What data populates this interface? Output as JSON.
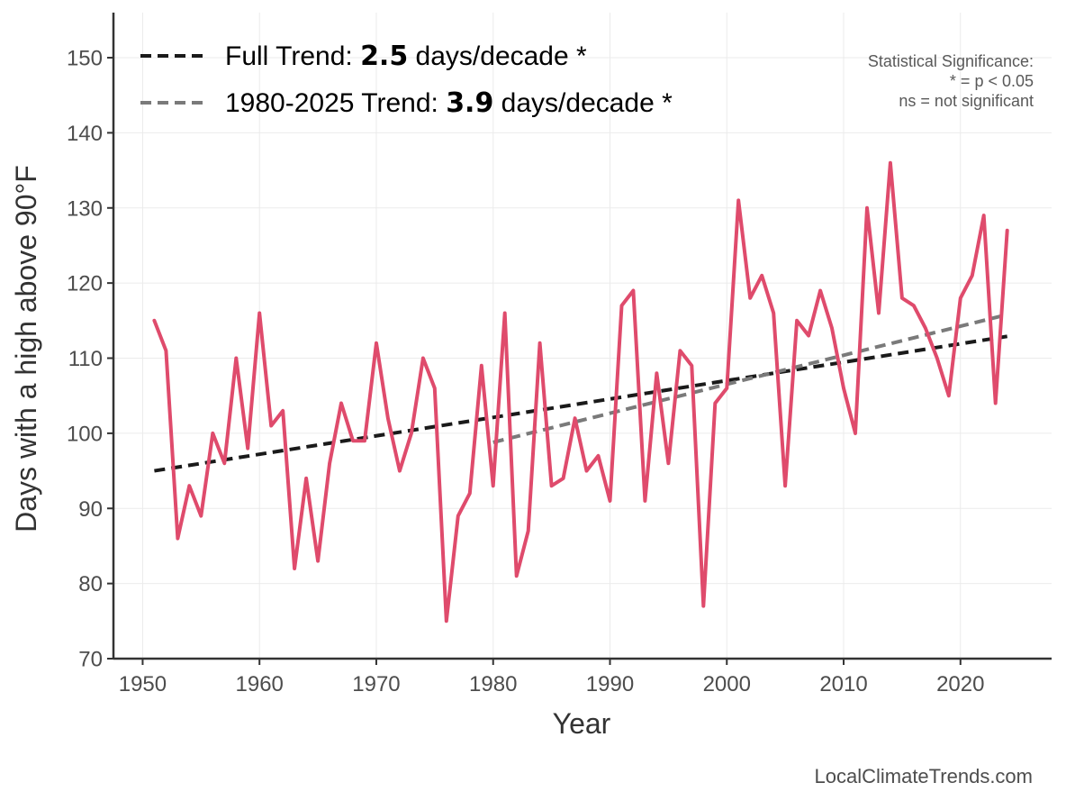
{
  "chart_data": {
    "type": "line",
    "xlabel": "Year",
    "ylabel": "Days with a high above 90°F",
    "xlim": [
      1947.5,
      2027.8
    ],
    "ylim": [
      70,
      156
    ],
    "xticks": [
      1950,
      1960,
      1970,
      1980,
      1990,
      2000,
      2010,
      2020
    ],
    "yticks": [
      70,
      80,
      90,
      100,
      110,
      120,
      130,
      140,
      150
    ],
    "grid": true,
    "legend_position": "top-left",
    "series": [
      {
        "name": "Days above 90°F",
        "color": "#df4b6c",
        "x": [
          1951,
          1952,
          1953,
          1954,
          1955,
          1956,
          1957,
          1958,
          1959,
          1960,
          1961,
          1962,
          1963,
          1964,
          1965,
          1966,
          1967,
          1968,
          1969,
          1970,
          1971,
          1972,
          1973,
          1974,
          1975,
          1976,
          1977,
          1978,
          1979,
          1980,
          1981,
          1982,
          1983,
          1984,
          1985,
          1986,
          1987,
          1988,
          1989,
          1990,
          1991,
          1992,
          1993,
          1994,
          1995,
          1996,
          1997,
          1998,
          1999,
          2000,
          2001,
          2002,
          2003,
          2004,
          2005,
          2006,
          2007,
          2008,
          2009,
          2010,
          2011,
          2012,
          2013,
          2014,
          2015,
          2016,
          2017,
          2018,
          2019,
          2020,
          2021,
          2022,
          2023,
          2024
        ],
        "values": [
          115,
          111,
          86,
          93,
          89,
          100,
          96,
          110,
          98,
          116,
          101,
          103,
          82,
          94,
          83,
          96,
          104,
          99,
          99,
          112,
          102,
          95,
          100,
          110,
          106,
          75,
          89,
          92,
          109,
          93,
          116,
          81,
          87,
          112,
          93,
          94,
          102,
          95,
          97,
          91,
          117,
          119,
          91,
          108,
          96,
          111,
          109,
          77,
          104,
          106,
          131,
          118,
          121,
          116,
          93,
          115,
          113,
          119,
          114,
          106,
          100,
          130,
          116,
          136,
          118,
          117,
          114,
          110,
          105,
          118,
          121,
          129,
          104,
          127
        ]
      }
    ],
    "trends": [
      {
        "name": "Full Trend",
        "label_prefix": "Full Trend: ",
        "value": "2.5",
        "label_suffix": " days/decade *",
        "color": "#1a1a1a",
        "x": [
          1951,
          2024
        ],
        "y": [
          95.0,
          112.9
        ]
      },
      {
        "name": "1980-2025 Trend",
        "label_prefix": "1980-2025 Trend: ",
        "value": "3.9",
        "label_suffix": " days/decade *",
        "color": "#7a7a7a",
        "x": [
          1980,
          2024
        ],
        "y": [
          98.8,
          115.8
        ]
      }
    ]
  },
  "significance_note": {
    "title": "Statistical Significance:",
    "line1": "* = p < 0.05",
    "line2": "ns = not significant"
  },
  "credit": "LocalClimateTrends.com"
}
